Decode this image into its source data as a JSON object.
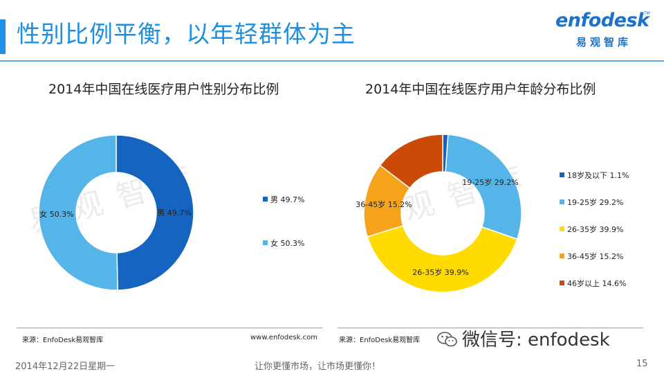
{
  "header": {
    "title": "性别比例平衡，以年轻群体为主",
    "logo_en": "enfodesk",
    "logo_tm": "TM",
    "logo_cn": "易观智库"
  },
  "watermark": "易观智库",
  "colors": {
    "accent": "#1e8fe0",
    "male": "#1565c0",
    "female": "#55b4e8",
    "age_1": "#1565c0",
    "age_2": "#55b4e8",
    "age_3": "#ffdb00",
    "age_4": "#f5a31a",
    "age_5": "#cc4a08"
  },
  "chart_data": [
    {
      "type": "pie",
      "variant": "donut",
      "title": "2014年中国在线医疗用户性别分布比例",
      "categories": [
        "男",
        "女"
      ],
      "values": [
        49.7,
        50.3
      ],
      "unit": "%",
      "data_labels": [
        "男 49.7%",
        "女 50.3%"
      ],
      "legend": [
        "男 49.7%",
        "女 50.3%"
      ],
      "legend_position": "right"
    },
    {
      "type": "pie",
      "variant": "donut",
      "title": "2014年中国在线医疗用户年龄分布比例",
      "categories": [
        "18岁及以下",
        "19-25岁",
        "26-35岁",
        "36-45岁",
        "46岁以上"
      ],
      "values": [
        1.1,
        29.2,
        39.9,
        15.2,
        14.6
      ],
      "unit": "%",
      "data_labels": [
        "",
        "19-25岁  29.2%",
        "26-35岁  39.9%",
        "36-45岁  15.2%",
        ""
      ],
      "legend": [
        "18岁及以下  1.1%",
        "19-25岁   29.2%",
        "26-35岁   39.9%",
        "36-45岁   15.2%",
        "46岁以上   14.6%"
      ],
      "legend_position": "right"
    }
  ],
  "sources": {
    "left_source": "来源：EnfoDesk易观智库",
    "left_url": "www.enfodesk.com",
    "right_source": "来源：EnfoDesk易观智库"
  },
  "wechat": "微信号: enfodesk",
  "footer": {
    "date": "2014年12月22日星期一",
    "slogan": "让你更懂市场，让市场更懂你！",
    "page": "15"
  }
}
